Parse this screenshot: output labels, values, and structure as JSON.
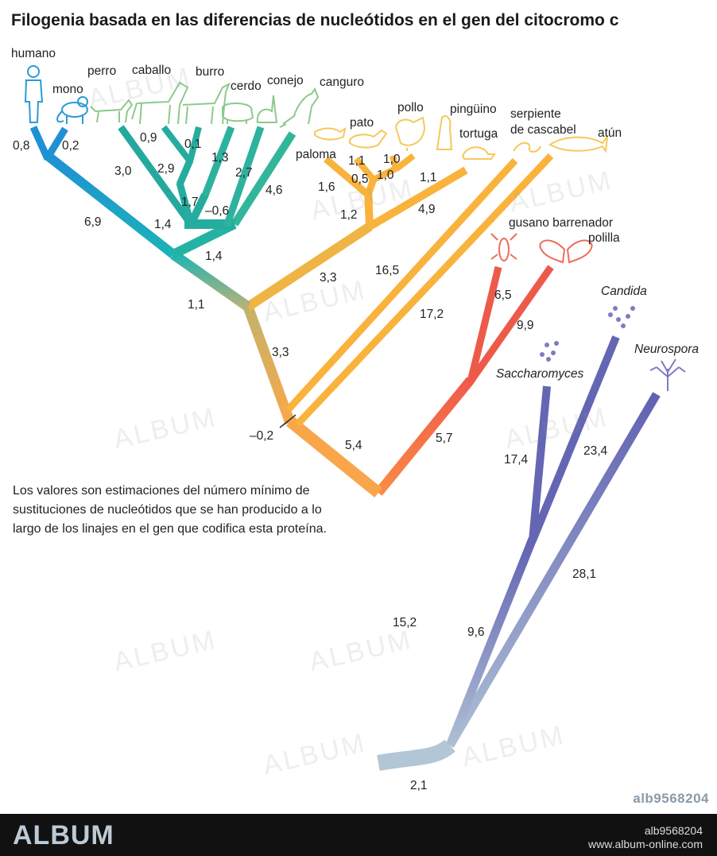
{
  "title": "Filogenia basada en las diferencias de nucleótidos en el gen del citocromo c",
  "note": "Los valores son estimaciones del número mínimo de sustituciones de nucleótidos que se han producido a lo largo de los linajes en el gen que codifica esta proteína.",
  "taxa": {
    "humano": "humano",
    "mono": "mono",
    "perro": "perro",
    "caballo": "caballo",
    "burro": "burro",
    "cerdo": "cerdo",
    "conejo": "conejo",
    "canguro": "canguro",
    "paloma": "paloma",
    "pato": "pato",
    "pollo": "pollo",
    "pinguino": "pingüino",
    "tortuga": "tortuga",
    "serpiente1": "serpiente",
    "serpiente2": "de cascabel",
    "atun": "atún",
    "gusano": "gusano barrenador",
    "polilla": "polilla",
    "candida": "Candida",
    "saccharomyces": "Saccharomyces",
    "neurospora": "Neurospora"
  },
  "branch_values": {
    "humano": "0,8",
    "mono": "0,2",
    "primates": "6,9",
    "mammals_stem": "1,1",
    "perro": "3,0",
    "caballo": "0,9",
    "burro": "0,1",
    "horse_pair": "2,9",
    "cerdo": "1,3",
    "dog_horse": "1,7",
    "conejo": "2,7",
    "ungulate_group": "1,4",
    "neg06": "–0,6",
    "canguro": "4,6",
    "placental": "1,4",
    "paloma": "1,6",
    "pato": "1,1",
    "pollo": "1,0",
    "pinguino": "1,0",
    "duck_chicken": "0,5",
    "chicken_peng": "1,0",
    "tortuga": "1,1",
    "birds_stem": "1,2",
    "serpiente": "4,9",
    "reptiles_stem": "3,3",
    "vert_upper": "3,3",
    "atun": "16,5",
    "serpiente_long": "17,2",
    "neg02": "–0,2",
    "vert_stem": "5,4",
    "gusano": "6,5",
    "polilla": "9,9",
    "insects_stem": "5,7",
    "animals_stem": "15,2",
    "saccharomyces": "17,4",
    "candida": "23,4",
    "yeasts": "9,6",
    "neurospora": "28,1",
    "root": "2,1"
  },
  "colors": {
    "primates": "#1f9ed0",
    "mammals": "#27b19e",
    "mammals_stem": "#1bb1b8",
    "reptiles": "#f4b43b",
    "vertebrate": "#c9b35e",
    "insects": "#f06b4a",
    "fungi": "#6c6bb5",
    "root": "#b5cbd6",
    "icon_primate": "#3aa6d8",
    "icon_mammal": "#8cc98a",
    "icon_bird": "#f7c85c",
    "icon_insect": "#ef6a5c",
    "icon_fungi": "#7d7bc4"
  },
  "watermark": "ALBUM",
  "ref_id": "alb9568204",
  "footer": {
    "brand": "ALBUM",
    "id": "alb9568204",
    "url": "www.album-online.com"
  }
}
